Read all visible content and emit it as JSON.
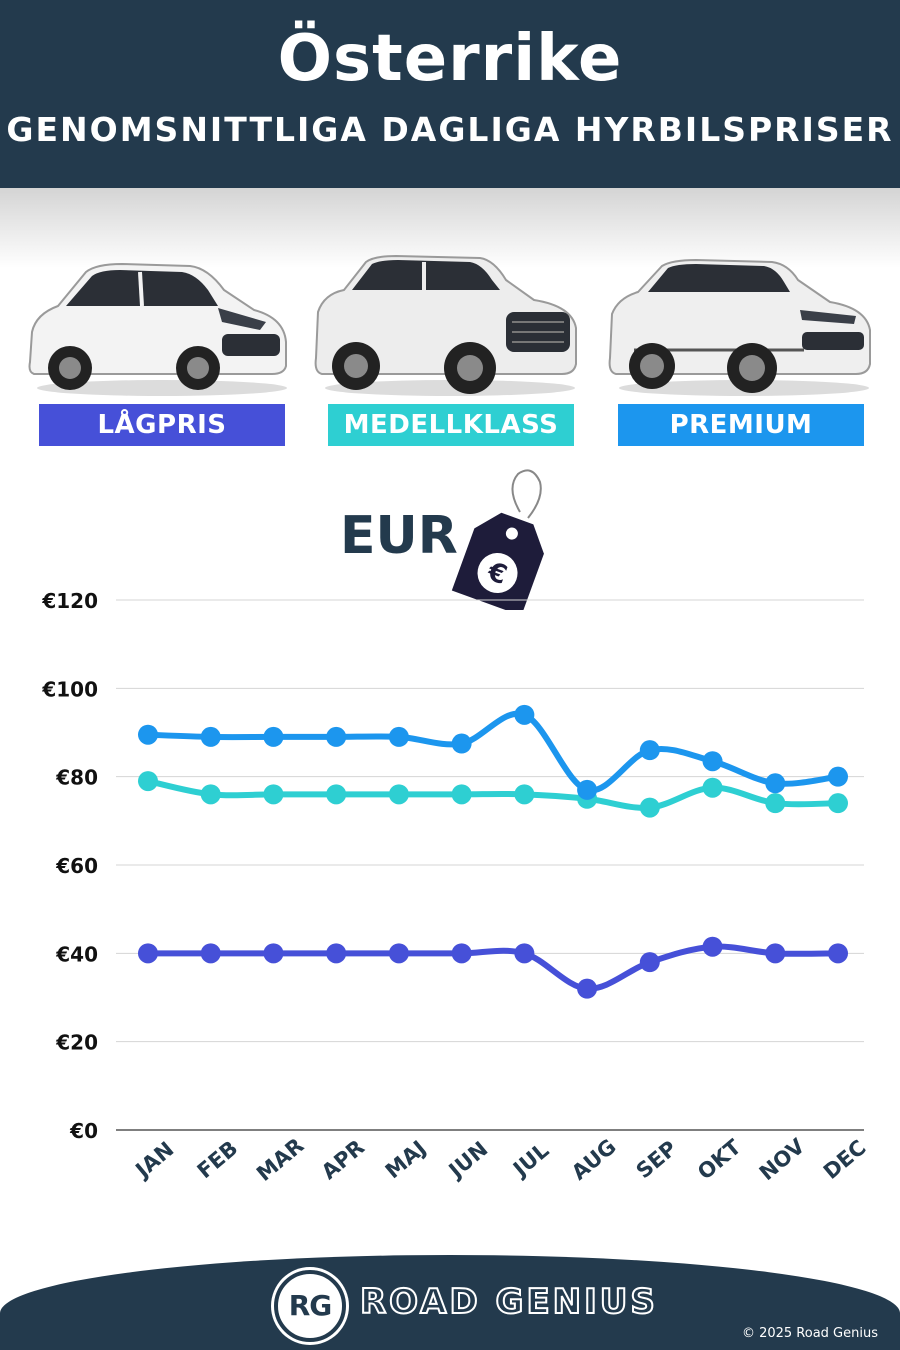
{
  "header": {
    "title": "Österrike",
    "subtitle": "GENOMSNITTLIGA DAGLIGA HYRBILSPRISER"
  },
  "categories": [
    {
      "label": "LÅGPRIS",
      "color": "#4650d8"
    },
    {
      "label": "MEDELLKLASS",
      "color": "#2ecfd2"
    },
    {
      "label": "PREMIUM",
      "color": "#1c96ee"
    }
  ],
  "currency": {
    "label": "EUR",
    "icon": "euro-price-tag-icon"
  },
  "chart_data": {
    "type": "line",
    "categories": [
      "JAN",
      "FEB",
      "MAR",
      "APR",
      "MAJ",
      "JUN",
      "JUL",
      "AUG",
      "SEP",
      "OKT",
      "NOV",
      "DEC"
    ],
    "series": [
      {
        "color": "#4650d8",
        "values": [
          40,
          40,
          40,
          40,
          40,
          40,
          40,
          32,
          38,
          41.5,
          40,
          40
        ]
      },
      {
        "color": "#2ecfd2",
        "values": [
          79,
          76,
          76,
          76,
          76,
          76,
          76,
          75,
          73,
          77.5,
          74,
          74
        ]
      },
      {
        "color": "#1c96ee",
        "values": [
          89.5,
          89,
          89,
          89,
          89,
          87.5,
          94,
          77,
          86,
          83.5,
          78.5,
          80
        ]
      }
    ],
    "ylim": [
      0,
      120
    ],
    "yticks": [
      "€0",
      "€20",
      "€40",
      "€60",
      "€80",
      "€100",
      "€120"
    ],
    "grid": true
  },
  "footer": {
    "logo_text": "RG",
    "brand": "ROAD GENIUS",
    "copyright": "© 2025 Road Genius"
  }
}
